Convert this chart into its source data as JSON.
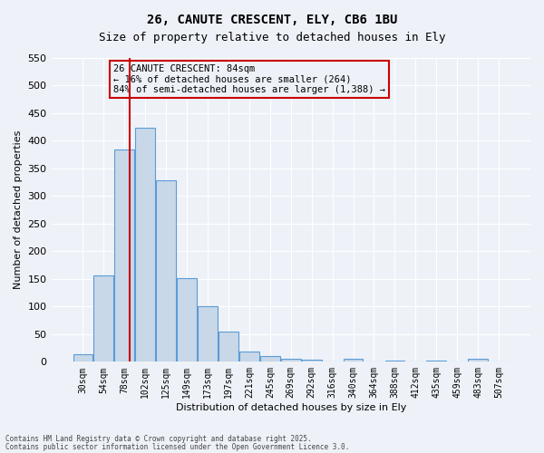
{
  "title1": "26, CANUTE CRESCENT, ELY, CB6 1BU",
  "title2": "Size of property relative to detached houses in Ely",
  "xlabel": "Distribution of detached houses by size in Ely",
  "ylabel": "Number of detached properties",
  "bar_labels": [
    "30sqm",
    "54sqm",
    "78sqm",
    "102sqm",
    "125sqm",
    "149sqm",
    "173sqm",
    "197sqm",
    "221sqm",
    "245sqm",
    "269sqm",
    "292sqm",
    "316sqm",
    "340sqm",
    "364sqm",
    "388sqm",
    "412sqm",
    "435sqm",
    "459sqm",
    "483sqm",
    "507sqm"
  ],
  "bar_heights": [
    14,
    157,
    385,
    424,
    329,
    152,
    100,
    55,
    19,
    10,
    5,
    4,
    1,
    5,
    0,
    3,
    0,
    2,
    0,
    5,
    0
  ],
  "bar_color": "#c8d8e8",
  "bar_edge_color": "#5b9bd5",
  "bg_color": "#eef2f8",
  "grid_color": "#ffffff",
  "vline_color": "#cc0000",
  "annotation_title": "26 CANUTE CRESCENT: 84sqm",
  "annotation_line2": "← 16% of detached houses are smaller (264)",
  "annotation_line3": "84% of semi-detached houses are larger (1,388) →",
  "annotation_box_color": "#cc0000",
  "ylim": [
    0,
    550
  ],
  "yticks": [
    0,
    50,
    100,
    150,
    200,
    250,
    300,
    350,
    400,
    450,
    500,
    550
  ],
  "footer1": "Contains HM Land Registry data © Crown copyright and database right 2025.",
  "footer2": "Contains public sector information licensed under the Open Government Licence 3.0."
}
